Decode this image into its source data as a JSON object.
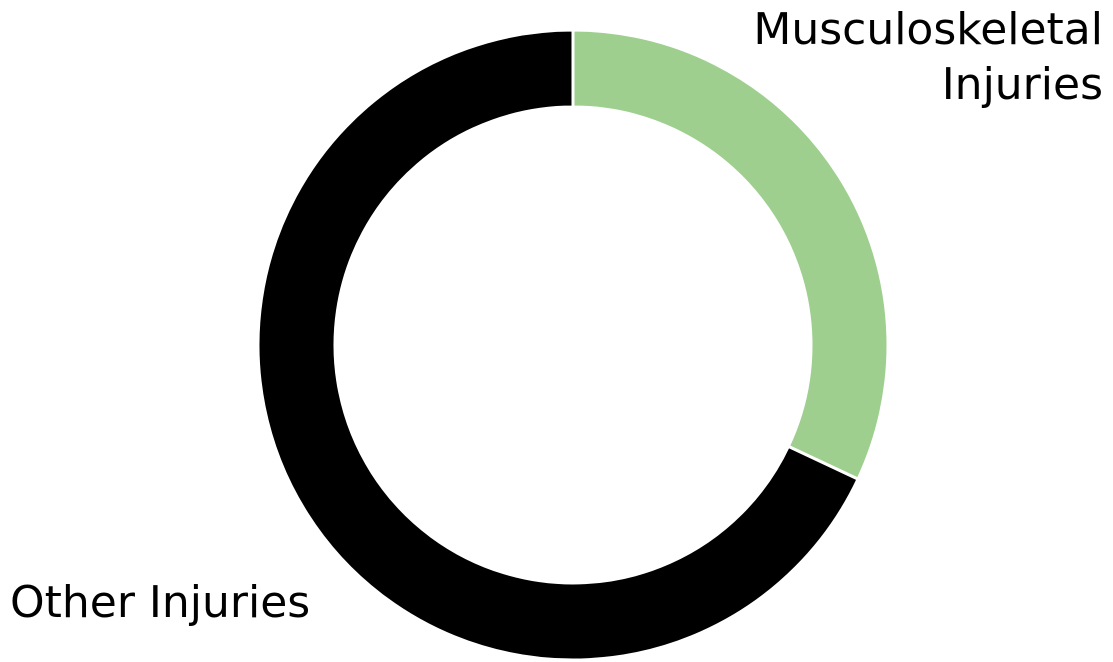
{
  "chart_data": {
    "type": "pie",
    "variant": "donut",
    "legend": "none",
    "slices": [
      {
        "label_lines": [
          "Musculoskeletal",
          "Injuries"
        ],
        "value": 32,
        "color": "#9ecf8e"
      },
      {
        "label_lines": [
          "Other Injuries"
        ],
        "value": 68,
        "color": "#000000"
      }
    ]
  }
}
